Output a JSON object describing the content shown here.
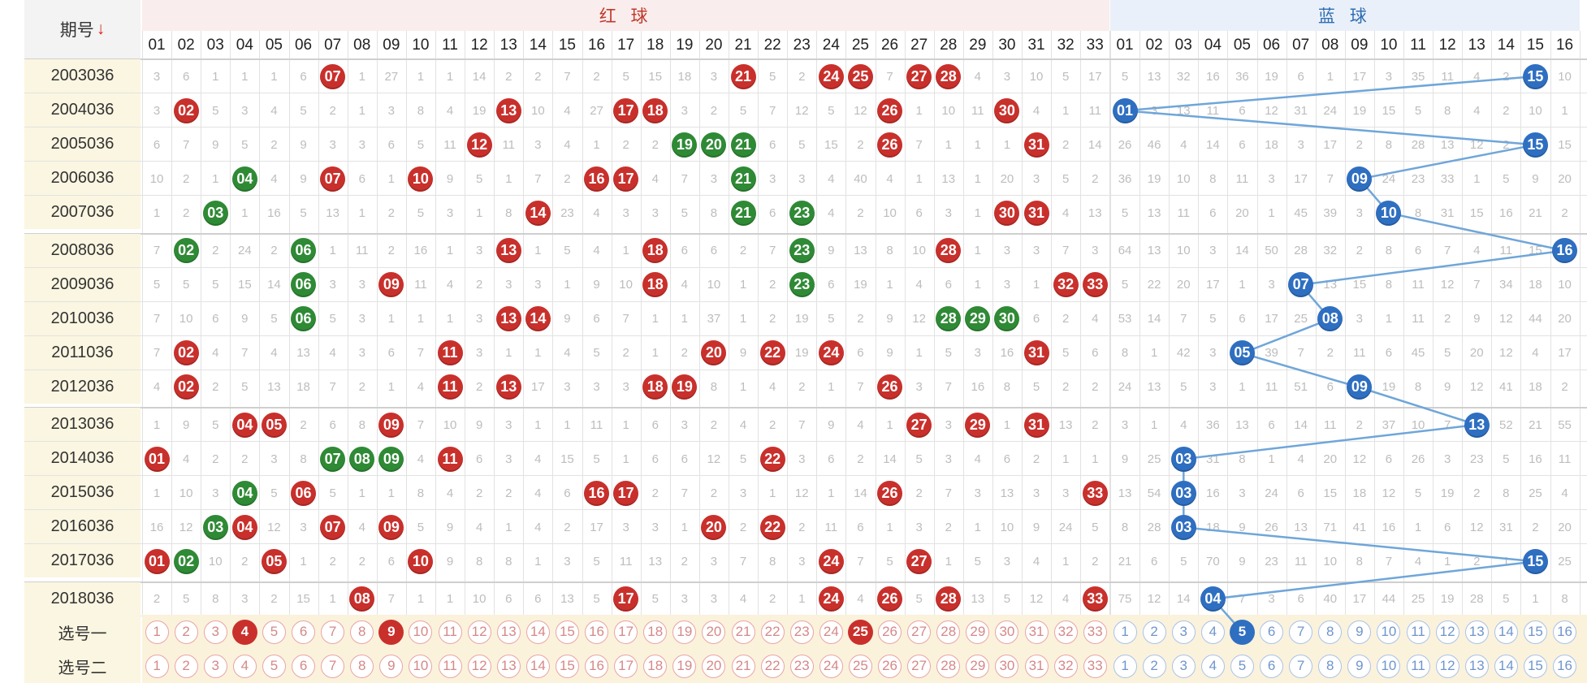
{
  "header": {
    "issue_label": "期号",
    "sort_icon": "red-down-arrow-icon",
    "red_title": "红 球",
    "blue_title": "蓝 球"
  },
  "red_numbers": [
    "01",
    "02",
    "03",
    "04",
    "05",
    "06",
    "07",
    "08",
    "09",
    "10",
    "11",
    "12",
    "13",
    "14",
    "15",
    "16",
    "17",
    "18",
    "19",
    "20",
    "21",
    "22",
    "23",
    "24",
    "25",
    "26",
    "27",
    "28",
    "29",
    "30",
    "31",
    "32",
    "33"
  ],
  "blue_numbers": [
    "01",
    "02",
    "03",
    "04",
    "05",
    "06",
    "07",
    "08",
    "09",
    "10",
    "11",
    "12",
    "13",
    "14",
    "15",
    "16"
  ],
  "colors": {
    "red_ball": "#c9302c",
    "green_ball": "#2f8a35",
    "blue_ball": "#2f6fc1",
    "trend_line": "#6fa6d9"
  },
  "rows": [
    {
      "issue": "2003036",
      "red": [
        "3",
        "6",
        "1",
        "1",
        "1",
        "6",
        "R:07",
        "1",
        "27",
        "1",
        "1",
        "14",
        "2",
        "2",
        "7",
        "2",
        "5",
        "15",
        "18",
        "3",
        "R:21",
        "5",
        "2",
        "R:24",
        "R:25",
        "7",
        "R:27",
        "R:28",
        "4",
        "3",
        "10",
        "5",
        "17"
      ],
      "blue": [
        "5",
        "13",
        "32",
        "16",
        "36",
        "19",
        "6",
        "1",
        "17",
        "3",
        "35",
        "11",
        "4",
        "2",
        "B:15",
        "10"
      ]
    },
    {
      "issue": "2004036",
      "red": [
        "3",
        "R:02",
        "5",
        "3",
        "4",
        "5",
        "2",
        "1",
        "3",
        "8",
        "4",
        "19",
        "R:13",
        "10",
        "4",
        "27",
        "R:17",
        "R:18",
        "3",
        "2",
        "5",
        "7",
        "12",
        "5",
        "12",
        "R:26",
        "1",
        "10",
        "11",
        "R:30",
        "4",
        "1",
        "11"
      ],
      "blue": [
        "B:01",
        "3",
        "13",
        "11",
        "6",
        "12",
        "31",
        "24",
        "19",
        "15",
        "5",
        "8",
        "4",
        "2",
        "10",
        "1"
      ]
    },
    {
      "issue": "2005036",
      "red": [
        "6",
        "7",
        "9",
        "5",
        "2",
        "9",
        "3",
        "3",
        "6",
        "5",
        "11",
        "R:12",
        "11",
        "3",
        "4",
        "1",
        "2",
        "2",
        "G:19",
        "G:20",
        "G:21",
        "6",
        "5",
        "15",
        "2",
        "R:26",
        "7",
        "1",
        "1",
        "1",
        "R:31",
        "2",
        "14"
      ],
      "blue": [
        "26",
        "46",
        "4",
        "14",
        "6",
        "18",
        "3",
        "17",
        "2",
        "8",
        "28",
        "13",
        "12",
        "2",
        "B:15",
        "15"
      ]
    },
    {
      "issue": "2006036",
      "red": [
        "10",
        "2",
        "1",
        "G:04",
        "4",
        "9",
        "R:07",
        "6",
        "1",
        "R:10",
        "9",
        "5",
        "1",
        "7",
        "2",
        "R:16",
        "R:17",
        "4",
        "7",
        "3",
        "G:21",
        "3",
        "3",
        "4",
        "40",
        "4",
        "1",
        "13",
        "1",
        "20",
        "3",
        "5",
        "2"
      ],
      "blue": [
        "36",
        "19",
        "10",
        "8",
        "11",
        "3",
        "17",
        "7",
        "B:09",
        "24",
        "23",
        "33",
        "1",
        "5",
        "9",
        "20"
      ]
    },
    {
      "issue": "2007036",
      "red": [
        "1",
        "2",
        "G:03",
        "1",
        "16",
        "5",
        "13",
        "1",
        "2",
        "5",
        "3",
        "1",
        "8",
        "R:14",
        "23",
        "4",
        "3",
        "3",
        "5",
        "8",
        "G:21",
        "6",
        "G:23",
        "4",
        "2",
        "10",
        "6",
        "3",
        "1",
        "R:30",
        "R:31",
        "4",
        "13"
      ],
      "blue": [
        "5",
        "13",
        "11",
        "6",
        "20",
        "1",
        "45",
        "39",
        "3",
        "B:10",
        "8",
        "31",
        "15",
        "16",
        "21",
        "2"
      ]
    },
    {
      "issue": "2008036",
      "red": [
        "7",
        "G:02",
        "2",
        "24",
        "2",
        "G:06",
        "1",
        "11",
        "2",
        "16",
        "1",
        "3",
        "R:13",
        "1",
        "5",
        "4",
        "1",
        "R:18",
        "6",
        "6",
        "2",
        "7",
        "G:23",
        "9",
        "13",
        "8",
        "10",
        "R:28",
        "1",
        "3",
        "3",
        "7",
        "3"
      ],
      "blue": [
        "64",
        "13",
        "10",
        "3",
        "14",
        "50",
        "28",
        "32",
        "2",
        "8",
        "6",
        "7",
        "4",
        "11",
        "15",
        "B:16"
      ]
    },
    {
      "issue": "2009036",
      "red": [
        "5",
        "5",
        "5",
        "15",
        "14",
        "G:06",
        "3",
        "3",
        "R:09",
        "11",
        "4",
        "2",
        "3",
        "3",
        "1",
        "9",
        "10",
        "R:18",
        "4",
        "10",
        "1",
        "2",
        "G:23",
        "6",
        "19",
        "1",
        "4",
        "6",
        "1",
        "3",
        "1",
        "R:32",
        "R:33"
      ],
      "blue": [
        "5",
        "22",
        "20",
        "17",
        "1",
        "3",
        "B:07",
        "13",
        "15",
        "8",
        "11",
        "12",
        "7",
        "34",
        "18",
        "10"
      ]
    },
    {
      "issue": "2010036",
      "red": [
        "7",
        "10",
        "6",
        "9",
        "5",
        "G:06",
        "5",
        "3",
        "1",
        "1",
        "1",
        "3",
        "R:13",
        "R:14",
        "9",
        "6",
        "7",
        "1",
        "1",
        "37",
        "1",
        "2",
        "19",
        "5",
        "2",
        "9",
        "12",
        "G:28",
        "G:29",
        "G:30",
        "6",
        "2",
        "4"
      ],
      "blue": [
        "53",
        "14",
        "7",
        "5",
        "6",
        "17",
        "25",
        "B:08",
        "3",
        "1",
        "11",
        "2",
        "9",
        "12",
        "44",
        "20"
      ]
    },
    {
      "issue": "2011036",
      "red": [
        "7",
        "R:02",
        "4",
        "7",
        "4",
        "13",
        "4",
        "3",
        "6",
        "7",
        "R:11",
        "3",
        "1",
        "1",
        "4",
        "5",
        "2",
        "1",
        "2",
        "R:20",
        "9",
        "R:22",
        "19",
        "R:24",
        "6",
        "9",
        "1",
        "5",
        "3",
        "16",
        "R:31",
        "5",
        "6"
      ],
      "blue": [
        "8",
        "1",
        "42",
        "3",
        "B:05",
        "39",
        "7",
        "2",
        "11",
        "6",
        "45",
        "5",
        "20",
        "12",
        "4",
        "17"
      ]
    },
    {
      "issue": "2012036",
      "red": [
        "4",
        "R:02",
        "2",
        "5",
        "13",
        "18",
        "7",
        "2",
        "1",
        "4",
        "R:11",
        "2",
        "R:13",
        "17",
        "3",
        "3",
        "3",
        "R:18",
        "R:19",
        "8",
        "1",
        "4",
        "2",
        "1",
        "7",
        "R:26",
        "3",
        "7",
        "16",
        "8",
        "5",
        "2",
        "2"
      ],
      "blue": [
        "24",
        "13",
        "5",
        "3",
        "1",
        "11",
        "51",
        "6",
        "B:09",
        "19",
        "8",
        "9",
        "12",
        "41",
        "18",
        "2"
      ]
    },
    {
      "issue": "2013036",
      "red": [
        "1",
        "9",
        "5",
        "R:04",
        "R:05",
        "2",
        "6",
        "8",
        "R:09",
        "7",
        "10",
        "9",
        "3",
        "1",
        "1",
        "11",
        "1",
        "6",
        "3",
        "2",
        "4",
        "2",
        "7",
        "9",
        "4",
        "1",
        "R:27",
        "3",
        "R:29",
        "1",
        "R:31",
        "13",
        "2"
      ],
      "blue": [
        "3",
        "1",
        "4",
        "36",
        "13",
        "6",
        "14",
        "11",
        "2",
        "37",
        "10",
        "7",
        "B:13",
        "52",
        "21",
        "55"
      ]
    },
    {
      "issue": "2014036",
      "red": [
        "R:01",
        "4",
        "2",
        "2",
        "3",
        "8",
        "G:07",
        "G:08",
        "G:09",
        "4",
        "R:11",
        "6",
        "3",
        "4",
        "15",
        "5",
        "1",
        "6",
        "6",
        "12",
        "5",
        "R:22",
        "3",
        "6",
        "2",
        "14",
        "5",
        "3",
        "4",
        "6",
        "2",
        "1",
        "1"
      ],
      "blue": [
        "9",
        "25",
        "B:03",
        "31",
        "8",
        "1",
        "4",
        "20",
        "12",
        "6",
        "26",
        "3",
        "23",
        "5",
        "16",
        "11"
      ]
    },
    {
      "issue": "2015036",
      "red": [
        "1",
        "10",
        "3",
        "G:04",
        "5",
        "R:06",
        "5",
        "1",
        "1",
        "8",
        "4",
        "2",
        "2",
        "4",
        "6",
        "R:16",
        "R:17",
        "2",
        "7",
        "2",
        "3",
        "1",
        "12",
        "1",
        "14",
        "R:26",
        "2",
        "7",
        "3",
        "13",
        "3",
        "3",
        "R:33"
      ],
      "blue": [
        "13",
        "54",
        "B:03",
        "16",
        "3",
        "24",
        "6",
        "15",
        "18",
        "12",
        "5",
        "19",
        "2",
        "8",
        "25",
        "4"
      ]
    },
    {
      "issue": "2016036",
      "red": [
        "16",
        "12",
        "G:03",
        "R:04",
        "12",
        "3",
        "R:07",
        "4",
        "R:09",
        "5",
        "9",
        "4",
        "1",
        "4",
        "2",
        "17",
        "3",
        "3",
        "1",
        "R:20",
        "2",
        "R:22",
        "2",
        "11",
        "6",
        "1",
        "3",
        "2",
        "1",
        "10",
        "9",
        "24",
        "5"
      ],
      "blue": [
        "8",
        "28",
        "B:03",
        "18",
        "9",
        "26",
        "13",
        "71",
        "41",
        "16",
        "1",
        "6",
        "12",
        "31",
        "2",
        "20"
      ]
    },
    {
      "issue": "2017036",
      "red": [
        "R:01",
        "G:02",
        "10",
        "2",
        "R:05",
        "1",
        "2",
        "2",
        "6",
        "R:10",
        "9",
        "8",
        "8",
        "1",
        "3",
        "5",
        "11",
        "13",
        "2",
        "3",
        "7",
        "8",
        "3",
        "R:24",
        "7",
        "5",
        "R:27",
        "1",
        "5",
        "3",
        "4",
        "1",
        "2"
      ],
      "blue": [
        "21",
        "6",
        "5",
        "70",
        "9",
        "23",
        "11",
        "10",
        "8",
        "7",
        "4",
        "1",
        "2",
        "1",
        "B:15",
        "25"
      ]
    },
    {
      "issue": "2018036",
      "red": [
        "2",
        "5",
        "8",
        "3",
        "2",
        "15",
        "1",
        "R:08",
        "7",
        "1",
        "1",
        "10",
        "6",
        "6",
        "13",
        "5",
        "R:17",
        "5",
        "3",
        "3",
        "4",
        "2",
        "1",
        "R:24",
        "4",
        "R:26",
        "5",
        "R:28",
        "13",
        "5",
        "12",
        "4",
        "R:33"
      ],
      "blue": [
        "75",
        "12",
        "14",
        "B:04",
        "7",
        "3",
        "6",
        "40",
        "17",
        "44",
        "25",
        "19",
        "28",
        "5",
        "1",
        "8"
      ]
    }
  ],
  "selectors": [
    {
      "label": "选号一",
      "red": [
        "1",
        "2",
        "3",
        "4",
        "5",
        "6",
        "7",
        "8",
        "9",
        "10",
        "11",
        "12",
        "13",
        "14",
        "15",
        "16",
        "17",
        "18",
        "19",
        "20",
        "21",
        "22",
        "23",
        "24",
        "25",
        "26",
        "27",
        "28",
        "29",
        "30",
        "31",
        "32",
        "33"
      ],
      "red_selected": [
        "4",
        "9",
        "25"
      ],
      "blue": [
        "1",
        "2",
        "3",
        "4",
        "5",
        "6",
        "7",
        "8",
        "9",
        "10",
        "11",
        "12",
        "13",
        "14",
        "15",
        "16"
      ],
      "blue_selected": [
        "5"
      ]
    },
    {
      "label": "选号二",
      "red": [
        "1",
        "2",
        "3",
        "4",
        "5",
        "6",
        "7",
        "8",
        "9",
        "10",
        "11",
        "12",
        "13",
        "14",
        "15",
        "16",
        "17",
        "18",
        "19",
        "20",
        "21",
        "22",
        "23",
        "24",
        "25",
        "26",
        "27",
        "28",
        "29",
        "30",
        "31",
        "32",
        "33"
      ],
      "red_selected": [],
      "blue": [
        "1",
        "2",
        "3",
        "4",
        "5",
        "6",
        "7",
        "8",
        "9",
        "10",
        "11",
        "12",
        "13",
        "14",
        "15",
        "16"
      ],
      "blue_selected": []
    }
  ]
}
